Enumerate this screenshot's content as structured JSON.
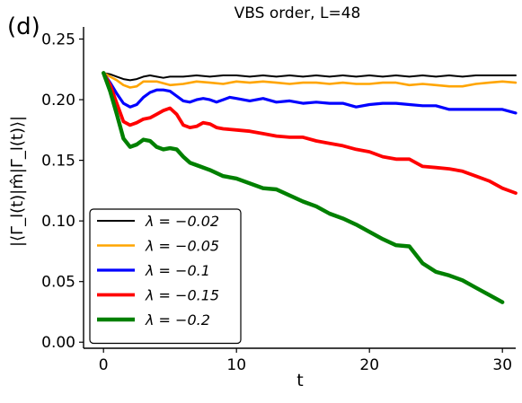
{
  "panel_label": "(d)",
  "chart_data": {
    "type": "line",
    "title": "VBS order, L=48",
    "xlabel": "t",
    "ylabel": "|⟨Γ_l(t)|m̂|Γ_l(t)⟩|",
    "xlim": [
      -1.5,
      31
    ],
    "ylim": [
      -0.005,
      0.26
    ],
    "xticks": [
      0,
      10,
      20,
      30
    ],
    "yticks": [
      0.0,
      0.05,
      0.1,
      0.15,
      0.2,
      0.25
    ],
    "xtick_labels": [
      "0",
      "10",
      "20",
      "30"
    ],
    "ytick_labels": [
      "0.00",
      "0.05",
      "0.10",
      "0.15",
      "0.20",
      "0.25"
    ],
    "grid": false,
    "legend_position": "lower-left",
    "series": [
      {
        "name": "λ = −0.02",
        "color": "#000000",
        "x": [
          0,
          0.5,
          1,
          1.5,
          2,
          2.5,
          3,
          3.5,
          4,
          4.5,
          5,
          6,
          7,
          8,
          9,
          10,
          11,
          12,
          13,
          14,
          15,
          16,
          17,
          18,
          19,
          20,
          21,
          22,
          23,
          24,
          25,
          26,
          27,
          28,
          29,
          30,
          31
        ],
        "values": [
          0.222,
          0.221,
          0.219,
          0.217,
          0.216,
          0.217,
          0.219,
          0.22,
          0.219,
          0.218,
          0.219,
          0.219,
          0.22,
          0.219,
          0.22,
          0.22,
          0.219,
          0.22,
          0.219,
          0.22,
          0.219,
          0.22,
          0.219,
          0.22,
          0.219,
          0.22,
          0.219,
          0.22,
          0.219,
          0.22,
          0.219,
          0.22,
          0.219,
          0.22,
          0.22,
          0.22,
          0.22
        ]
      },
      {
        "name": "λ = −0.05",
        "color": "#FFA500",
        "x": [
          0,
          0.5,
          1,
          1.5,
          2,
          2.5,
          3,
          4,
          5,
          6,
          7,
          8,
          9,
          10,
          11,
          12,
          13,
          14,
          15,
          16,
          17,
          18,
          19,
          20,
          21,
          22,
          23,
          24,
          25,
          26,
          27,
          28,
          29,
          30,
          31
        ],
        "values": [
          0.222,
          0.219,
          0.216,
          0.212,
          0.21,
          0.211,
          0.215,
          0.215,
          0.212,
          0.213,
          0.215,
          0.214,
          0.213,
          0.215,
          0.214,
          0.215,
          0.214,
          0.213,
          0.214,
          0.214,
          0.213,
          0.214,
          0.213,
          0.213,
          0.214,
          0.214,
          0.212,
          0.213,
          0.212,
          0.211,
          0.211,
          0.213,
          0.214,
          0.215,
          0.214
        ]
      },
      {
        "name": "λ = −0.1",
        "color": "#0000FF",
        "x": [
          0,
          0.5,
          1,
          1.5,
          2,
          2.5,
          3,
          3.5,
          4,
          4.5,
          5,
          5.5,
          6,
          6.5,
          7,
          7.5,
          8,
          8.5,
          9,
          9.5,
          10,
          11,
          12,
          13,
          14,
          15,
          16,
          17,
          18,
          19,
          20,
          21,
          22,
          23,
          24,
          25,
          26,
          27,
          28,
          29,
          30,
          31
        ],
        "values": [
          0.222,
          0.214,
          0.205,
          0.197,
          0.194,
          0.196,
          0.202,
          0.206,
          0.208,
          0.208,
          0.207,
          0.203,
          0.199,
          0.198,
          0.2,
          0.201,
          0.2,
          0.198,
          0.2,
          0.202,
          0.201,
          0.199,
          0.201,
          0.198,
          0.199,
          0.197,
          0.198,
          0.197,
          0.197,
          0.194,
          0.196,
          0.197,
          0.197,
          0.196,
          0.195,
          0.195,
          0.192,
          0.192,
          0.192,
          0.192,
          0.192,
          0.189
        ]
      },
      {
        "name": "λ = −0.15",
        "color": "#FF0000",
        "x": [
          0,
          0.5,
          1,
          1.5,
          2,
          2.5,
          3,
          3.5,
          4,
          4.5,
          5,
          5.5,
          6,
          6.5,
          7,
          7.5,
          8,
          8.5,
          9,
          10,
          11,
          12,
          13,
          14,
          15,
          16,
          17,
          18,
          19,
          20,
          21,
          22,
          23,
          24,
          25,
          26,
          27,
          28,
          29,
          30,
          31
        ],
        "values": [
          0.222,
          0.212,
          0.197,
          0.182,
          0.179,
          0.181,
          0.184,
          0.185,
          0.188,
          0.191,
          0.193,
          0.188,
          0.179,
          0.177,
          0.178,
          0.181,
          0.18,
          0.177,
          0.176,
          0.175,
          0.174,
          0.172,
          0.17,
          0.169,
          0.169,
          0.166,
          0.164,
          0.162,
          0.159,
          0.157,
          0.153,
          0.151,
          0.151,
          0.145,
          0.144,
          0.143,
          0.141,
          0.137,
          0.133,
          0.127,
          0.123
        ]
      },
      {
        "name": "λ = −0.2",
        "color": "#008000",
        "x": [
          0,
          0.5,
          1,
          1.5,
          2,
          2.5,
          3,
          3.5,
          4,
          4.5,
          5,
          5.5,
          6,
          6.5,
          7,
          8,
          9,
          10,
          11,
          12,
          13,
          14,
          15,
          16,
          17,
          18,
          19,
          20,
          21,
          22,
          23,
          24,
          25,
          26,
          27,
          28,
          29,
          30
        ],
        "values": [
          0.222,
          0.207,
          0.188,
          0.168,
          0.161,
          0.163,
          0.167,
          0.166,
          0.161,
          0.159,
          0.16,
          0.159,
          0.153,
          0.148,
          0.146,
          0.142,
          0.137,
          0.135,
          0.131,
          0.127,
          0.126,
          0.121,
          0.116,
          0.112,
          0.106,
          0.102,
          0.097,
          0.091,
          0.085,
          0.08,
          0.079,
          0.065,
          0.058,
          0.055,
          0.051,
          0.045,
          0.039,
          0.033
        ]
      }
    ]
  }
}
